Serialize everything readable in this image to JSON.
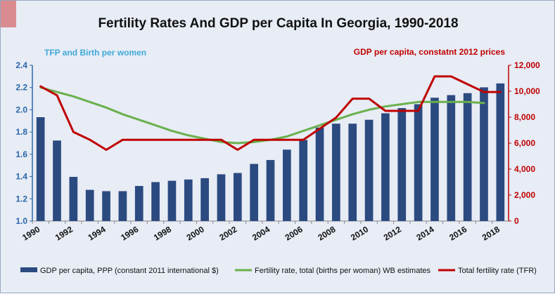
{
  "chart_data": {
    "type": "bar",
    "title": "Fertility Rates And GDP per Capita In Georgia, 1990-2018",
    "left_axis_label": "TFP and Birth per women",
    "right_axis_label": "GDP per capita, constatnt 2012 prices",
    "x": [
      1990,
      1991,
      1992,
      1993,
      1994,
      1995,
      1996,
      1997,
      1998,
      1999,
      2000,
      2001,
      2002,
      2003,
      2004,
      2005,
      2006,
      2007,
      2008,
      2009,
      2010,
      2011,
      2012,
      2013,
      2014,
      2015,
      2016,
      2017,
      2018
    ],
    "x_tick_labels": [
      "1990",
      "1992",
      "1994",
      "1996",
      "1998",
      "2000",
      "2002",
      "2004",
      "2006",
      "2008",
      "2010",
      "2012",
      "2014",
      "2016",
      "2018"
    ],
    "y_left_ticks": [
      "1.0",
      "1.2",
      "1.4",
      "1.6",
      "1.8",
      "2.0",
      "2.2",
      "2.4"
    ],
    "y_right_ticks": [
      "0",
      "2,000",
      "4,000",
      "6,000",
      "8,000",
      "10,000",
      "12,000"
    ],
    "ylim_left": [
      1.0,
      2.4
    ],
    "ylim_right": [
      0,
      12000
    ],
    "grid": false,
    "legend_position": "bottom",
    "colors": {
      "bars": "#2b4a80",
      "wb": "#6ab04c",
      "tfr": "#c00000"
    },
    "series": [
      {
        "name": "GDP per capita, PPP (constant 2011 international $)",
        "type": "bar",
        "axis": "right",
        "values": [
          8000,
          6200,
          3400,
          2400,
          2300,
          2300,
          2700,
          3000,
          3100,
          3200,
          3300,
          3600,
          3700,
          4400,
          4700,
          5500,
          6250,
          7200,
          7500,
          7500,
          7800,
          8300,
          8700,
          9000,
          9500,
          9700,
          9850,
          10300,
          10600
        ]
      },
      {
        "name": "Fertility rate, total (births per woman) WB estimates",
        "type": "line",
        "axis": "left",
        "values": [
          2.2,
          2.16,
          2.12,
          2.07,
          2.02,
          1.96,
          1.91,
          1.86,
          1.81,
          1.77,
          1.74,
          1.71,
          1.7,
          1.71,
          1.73,
          1.76,
          1.81,
          1.86,
          1.91,
          1.96,
          2.0,
          2.03,
          2.05,
          2.07,
          2.07,
          2.07,
          2.07,
          2.06,
          null
        ]
      },
      {
        "name": "Total fertility rate (TFR)",
        "type": "line",
        "axis": "left",
        "values": [
          2.21,
          2.13,
          1.8,
          1.73,
          1.64,
          1.73,
          1.73,
          1.73,
          1.73,
          1.73,
          1.73,
          1.73,
          1.64,
          1.73,
          1.73,
          1.73,
          1.73,
          1.83,
          1.93,
          2.1,
          2.1,
          1.99,
          1.99,
          1.99,
          2.3,
          2.3,
          2.23,
          2.16,
          2.16
        ]
      }
    ]
  }
}
